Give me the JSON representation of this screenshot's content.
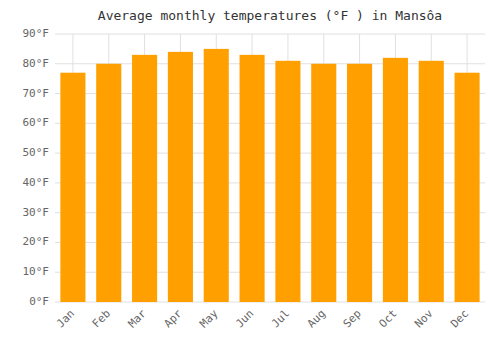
{
  "chart_data": {
    "type": "bar",
    "title": "Average monthly temperatures (°F ) in Mansôa",
    "categories": [
      "Jan",
      "Feb",
      "Mar",
      "Apr",
      "May",
      "Jun",
      "Jul",
      "Aug",
      "Sep",
      "Oct",
      "Nov",
      "Dec"
    ],
    "values": [
      77,
      80,
      83,
      84,
      85,
      83,
      81,
      80,
      80,
      82,
      81,
      77
    ],
    "color": "#FFA000",
    "ylim": [
      0,
      90
    ],
    "yticks": [
      {
        "value": 0,
        "label": "0°F"
      },
      {
        "value": 10,
        "label": "10°F"
      },
      {
        "value": 20,
        "label": "20°F"
      },
      {
        "value": 30,
        "label": "30°F"
      },
      {
        "value": 40,
        "label": "40°F"
      },
      {
        "value": 50,
        "label": "50°F"
      },
      {
        "value": 60,
        "label": "60°F"
      },
      {
        "value": 70,
        "label": "70°F"
      },
      {
        "value": 80,
        "label": "80°F"
      },
      {
        "value": 90,
        "label": "90°F"
      }
    ],
    "grid": true
  }
}
